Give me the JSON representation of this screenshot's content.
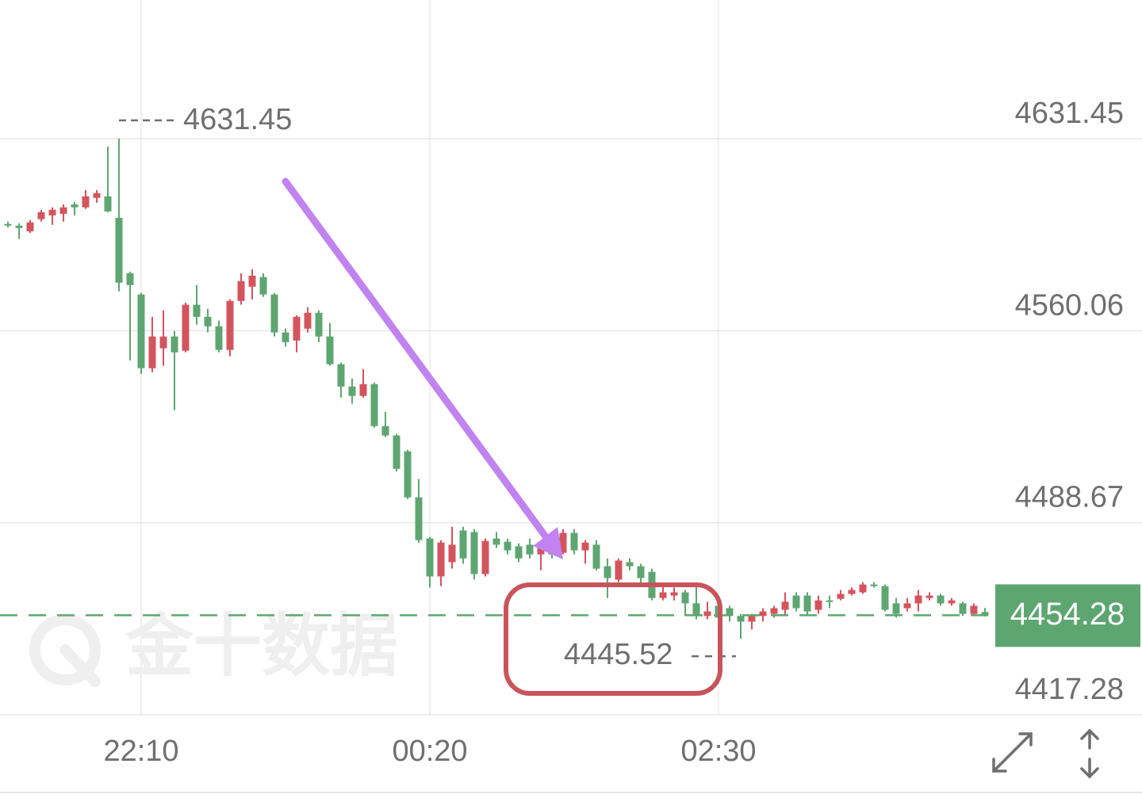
{
  "chart_data": {
    "type": "candlestick",
    "categories": [
      null,
      null,
      null,
      null,
      null,
      null,
      null,
      null,
      null,
      null,
      null,
      null,
      "22:10",
      null,
      null,
      null,
      null,
      null,
      null,
      null,
      null,
      null,
      null,
      null,
      null,
      null,
      null,
      null,
      null,
      null,
      null,
      null,
      null,
      null,
      null,
      null,
      null,
      null,
      "00:20",
      null,
      null,
      null,
      null,
      null,
      null,
      null,
      null,
      null,
      null,
      null,
      null,
      null,
      null,
      null,
      null,
      null,
      null,
      null,
      null,
      null,
      null,
      null,
      null,
      null,
      "02:30",
      null,
      null,
      null,
      null,
      null,
      null,
      null,
      null,
      null,
      null,
      null,
      null,
      null,
      null,
      null,
      null,
      null,
      null,
      null,
      null,
      null,
      null,
      null,
      null
    ],
    "open": [
      4599.7,
      4599.1,
      4597.0,
      4601.5,
      4602.9,
      4603.5,
      4607.0,
      4605.9,
      4609.4,
      4610.0,
      4602.0,
      4581.4,
      4573.5,
      4546.1,
      4553.5,
      4557.9,
      4552.6,
      4569.7,
      4565.2,
      4561.7,
      4552.9,
      4571.1,
      4576.4,
      4580.0,
      4573.5,
      4559.4,
      4556.4,
      4560.8,
      4566.7,
      4557.9,
      4547.6,
      4539.3,
      4535.8,
      4540.2,
      4524.6,
      4521.1,
      4515.2,
      4498.1,
      4482.8,
      4468.7,
      4474.0,
      4485.8,
      4485.2,
      4469.6,
      4482.8,
      4481.6,
      4479.9,
      4480.5,
      4476.9,
      4479.9,
      4477.5,
      4484.9,
      4478.4,
      4480.5,
      4472.5,
      4467.5,
      4474.0,
      4472.5,
      4470.4,
      4460.7,
      4461.6,
      4462.8,
      4458.7,
      4454.0,
      4457.8,
      4456.9,
      4454.0,
      4451.9,
      4454.0,
      4454.8,
      4456.3,
      4461.6,
      4461.6,
      4456.3,
      4459.8,
      4460.4,
      4462.2,
      4462.8,
      4465.7,
      4465.1,
      4458.7,
      4456.9,
      4458.7,
      4460.7,
      4461.6,
      4458.7,
      4458.7,
      4454.8,
      4455.5
    ],
    "high": [
      4600.6,
      4600.0,
      4601.2,
      4605.0,
      4605.9,
      4607.0,
      4607.9,
      4612.3,
      4612.3,
      4628.5,
      4631.45,
      4582.0,
      4574.1,
      4565.2,
      4567.6,
      4559.9,
      4570.5,
      4577.0,
      4568.2,
      4563.8,
      4571.7,
      4581.4,
      4582.9,
      4581.4,
      4574.1,
      4560.8,
      4565.8,
      4568.8,
      4567.6,
      4562.9,
      4548.2,
      4542.3,
      4545.8,
      4540.8,
      4529.9,
      4521.7,
      4515.8,
      4504.9,
      4483.4,
      4482.2,
      4487.2,
      4487.2,
      4486.3,
      4482.8,
      4485.2,
      4482.8,
      4481.0,
      4482.8,
      4481.3,
      4482.8,
      4486.3,
      4486.3,
      4482.2,
      4482.2,
      4475.4,
      4475.4,
      4475.4,
      4473.4,
      4471.6,
      4465.1,
      4464.6,
      4463.7,
      4465.1,
      4459.3,
      4458.7,
      4457.8,
      4454.8,
      4454.8,
      4456.9,
      4457.8,
      4462.8,
      4462.8,
      4462.8,
      4461.6,
      4461.6,
      4463.7,
      4464.6,
      4466.6,
      4466.6,
      4465.7,
      4460.7,
      4460.7,
      4463.7,
      4462.8,
      4462.2,
      4460.7,
      4459.3,
      4458.7,
      4457.0
    ],
    "low": [
      4598.5,
      4594.1,
      4596.4,
      4600.6,
      4599.4,
      4600.6,
      4602.9,
      4605.3,
      4607.6,
      4604.1,
      4574.7,
      4549.0,
      4544.0,
      4544.6,
      4547.0,
      4530.5,
      4552.0,
      4562.3,
      4559.4,
      4552.0,
      4550.5,
      4569.7,
      4571.7,
      4572.6,
      4557.9,
      4554.1,
      4552.0,
      4559.4,
      4555.8,
      4547.0,
      4535.2,
      4532.9,
      4535.2,
      4524.0,
      4520.5,
      4507.8,
      4497.5,
      4481.3,
      4464.6,
      4465.1,
      4471.6,
      4473.4,
      4467.5,
      4468.7,
      4479.3,
      4476.9,
      4474.0,
      4475.4,
      4471.0,
      4475.4,
      4476.9,
      4476.9,
      4473.4,
      4471.0,
      4460.7,
      4466.6,
      4471.0,
      4465.7,
      4459.8,
      4459.8,
      4459.8,
      4454.0,
      4452.8,
      4452.8,
      4452.8,
      4451.9,
      4445.52,
      4449.0,
      4451.9,
      4453.4,
      4454.0,
      4455.7,
      4454.0,
      4454.8,
      4456.9,
      4459.8,
      4461.6,
      4462.2,
      4464.6,
      4455.7,
      4453.4,
      4455.7,
      4455.7,
      4459.8,
      4457.8,
      4457.8,
      4454.0,
      4454.0,
      4453.8
    ],
    "close": [
      4599.1,
      4598.2,
      4600.3,
      4604.1,
      4605.0,
      4605.9,
      4605.9,
      4610.0,
      4611.2,
      4604.4,
      4577.9,
      4577.0,
      4546.1,
      4557.9,
      4557.9,
      4552.0,
      4569.7,
      4565.2,
      4561.7,
      4552.9,
      4571.1,
      4578.5,
      4580.5,
      4573.5,
      4559.4,
      4555.8,
      4565.2,
      4566.7,
      4557.9,
      4547.6,
      4539.3,
      4535.8,
      4540.2,
      4524.6,
      4521.1,
      4508.7,
      4498.1,
      4482.2,
      4468.7,
      4481.3,
      4480.5,
      4475.4,
      4469.6,
      4481.9,
      4480.5,
      4478.4,
      4475.4,
      4476.9,
      4479.9,
      4476.9,
      4484.9,
      4478.4,
      4481.3,
      4471.6,
      4468.1,
      4474.6,
      4472.5,
      4468.1,
      4460.7,
      4462.8,
      4462.8,
      4458.7,
      4454.0,
      4455.7,
      4453.4,
      4454.0,
      4451.9,
      4454.0,
      4455.7,
      4456.9,
      4459.3,
      4456.9,
      4455.7,
      4459.8,
      4459.3,
      4462.2,
      4463.7,
      4465.7,
      4465.1,
      4456.3,
      4454.8,
      4458.7,
      4461.6,
      4461.6,
      4458.7,
      4459.8,
      4454.8,
      4457.8,
      4454.28
    ],
    "up_color": "#d4545e",
    "down_color": "#5ea671",
    "ylim": [
      4417.28,
      4682.97
    ],
    "yticks": [
      4631.45,
      4560.06,
      4488.67,
      4417.28
    ],
    "grid": true,
    "high_marker": 4631.45,
    "low_marker": 4445.52,
    "last_price": 4454.28,
    "watermark": "金十数据"
  }
}
